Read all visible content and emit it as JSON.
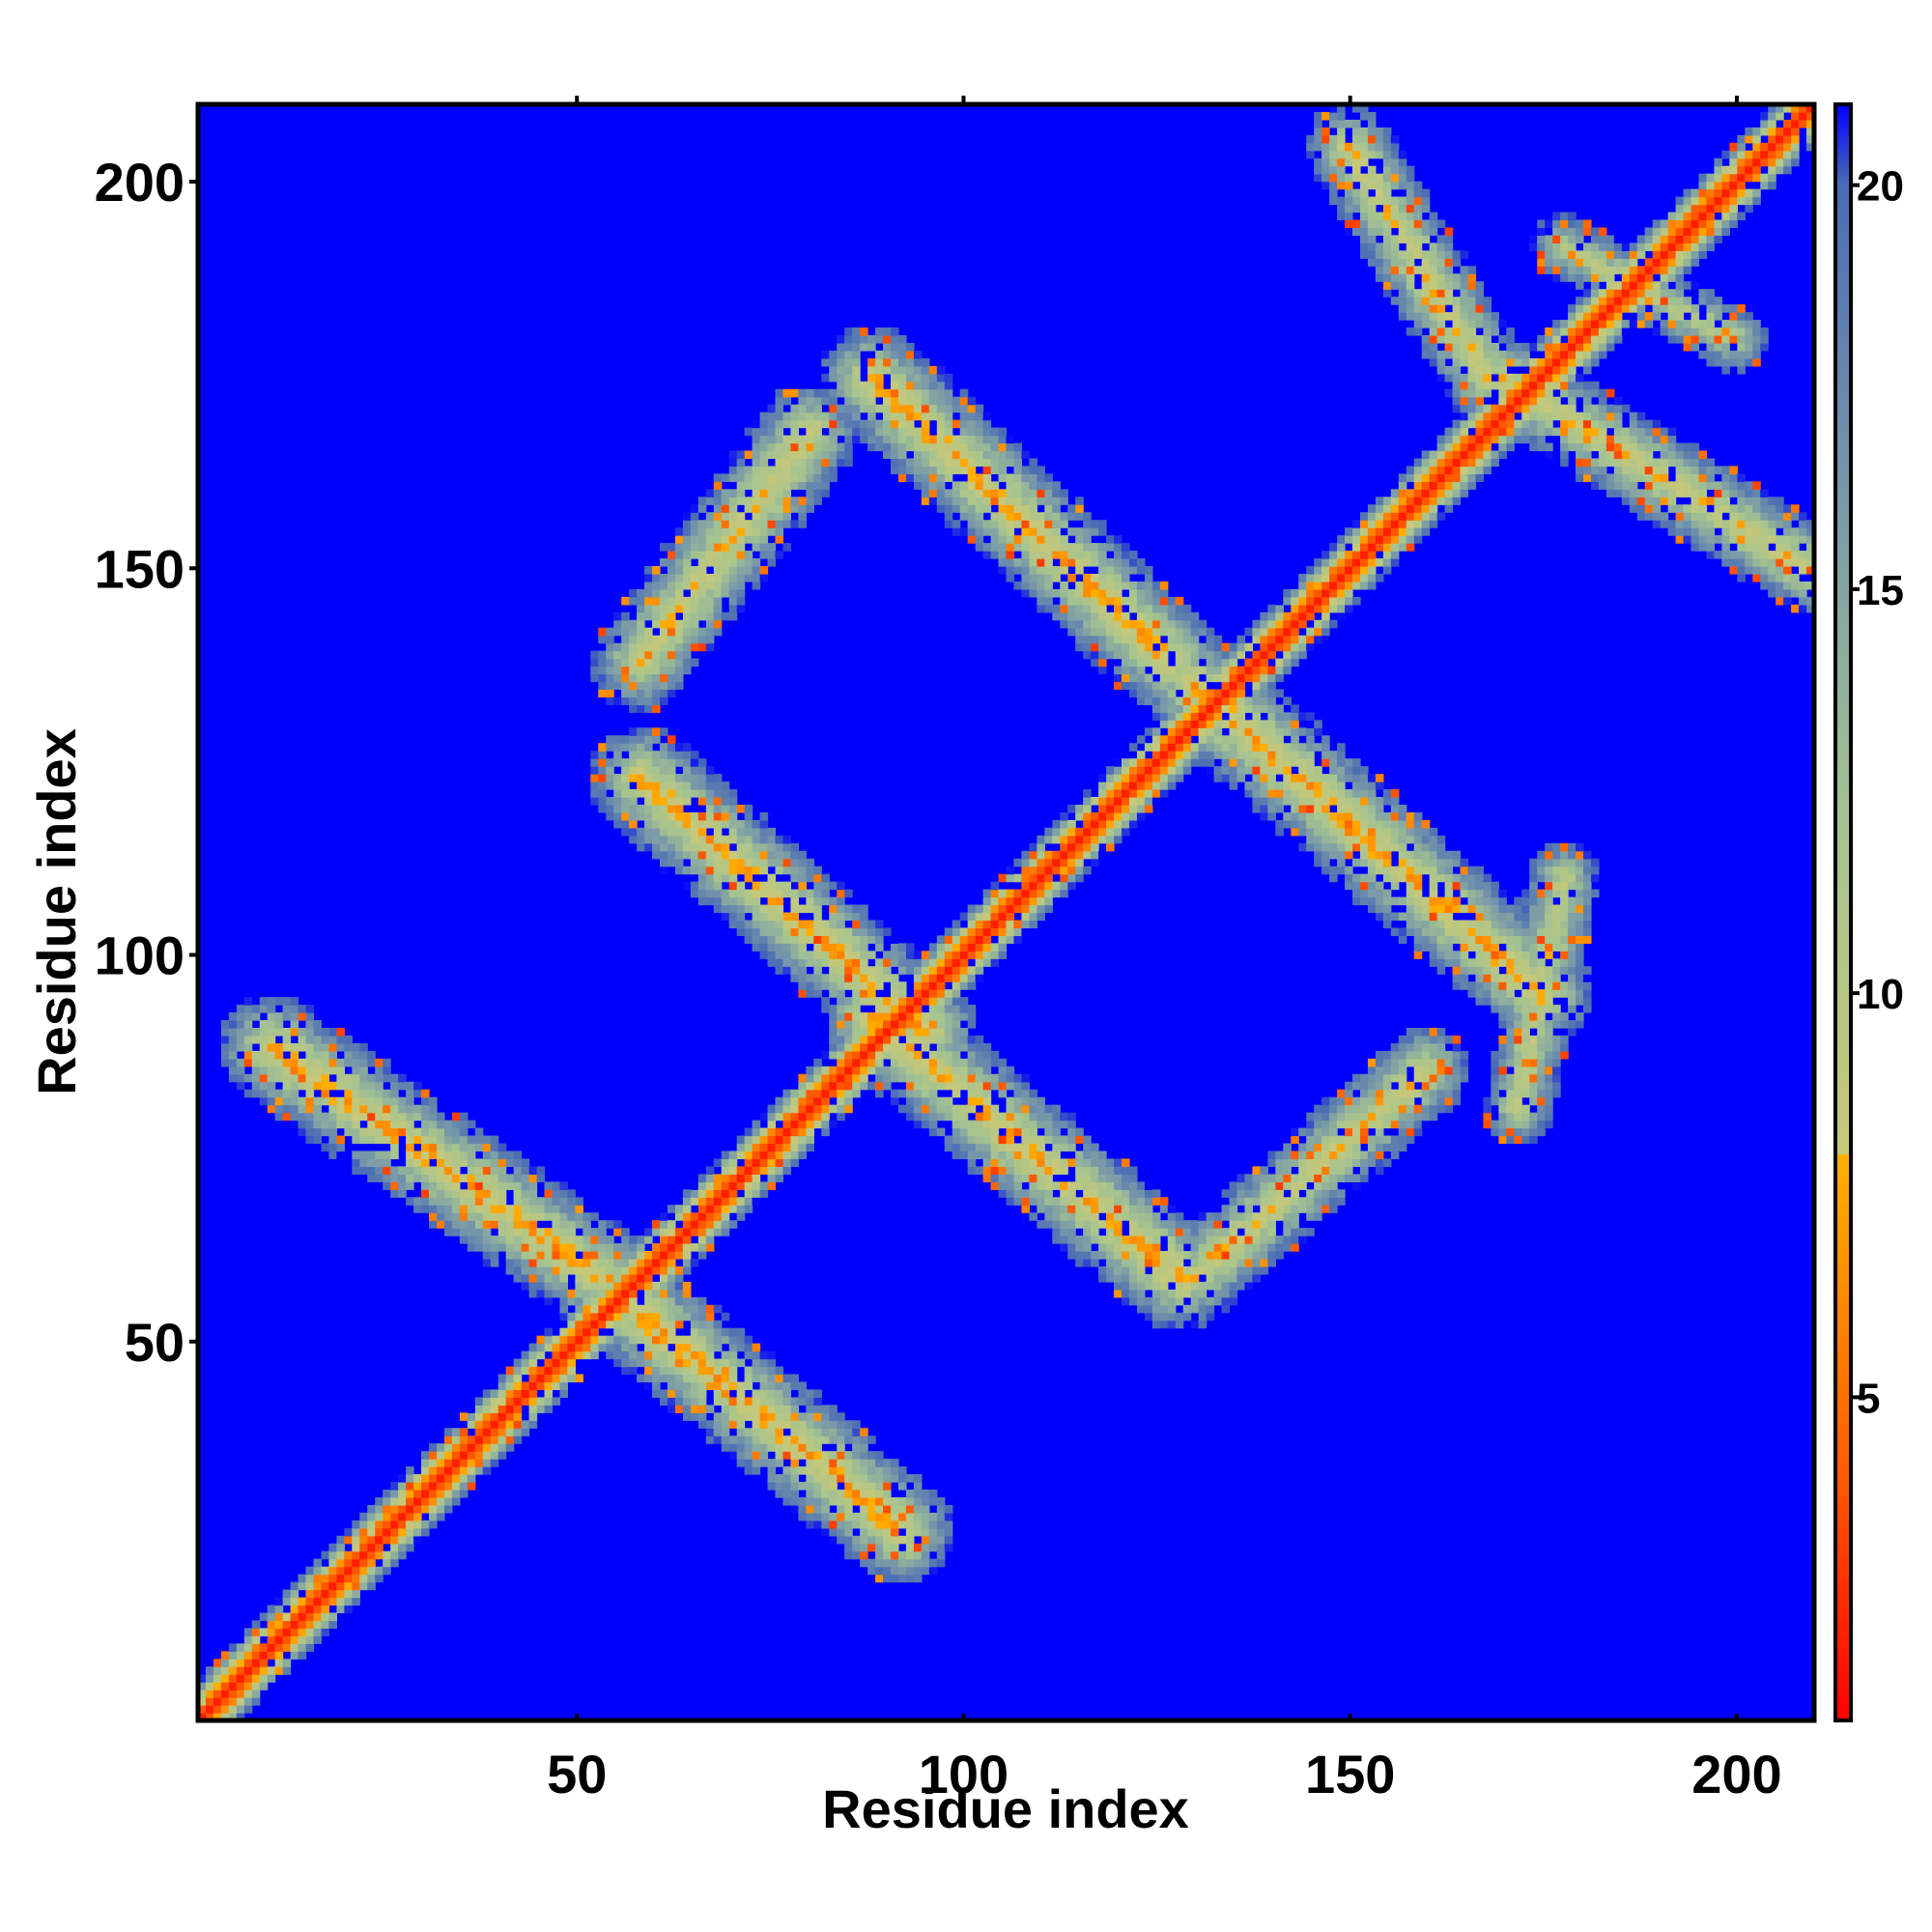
{
  "chart_data": {
    "type": "heatmap",
    "title": "",
    "xlabel": "Residue index",
    "ylabel": "Residue index",
    "xlim": [
      1,
      210
    ],
    "ylim": [
      1,
      210
    ],
    "x_ticks": [
      50,
      100,
      150,
      200
    ],
    "y_ticks": [
      50,
      100,
      150,
      200
    ],
    "x_tick_labels": [
      "50",
      "100",
      "150",
      "200"
    ],
    "y_tick_labels": [
      "50",
      "100",
      "150",
      "200"
    ],
    "grid": false,
    "legend": "colorbar-right",
    "colorbar": {
      "range": [
        1,
        21
      ],
      "ticks": [
        5,
        10,
        15,
        20
      ],
      "tick_labels": [
        "5",
        "10",
        "15",
        "20"
      ],
      "colors": [
        {
          "value": 1,
          "color": "#ff0000"
        },
        {
          "value": 4,
          "color": "#ff5a00"
        },
        {
          "value": 7,
          "color": "#ff9a00"
        },
        {
          "value": 8,
          "color": "#ffb000"
        },
        {
          "value": 8.01,
          "color": "#c8c878"
        },
        {
          "value": 12,
          "color": "#a6c490"
        },
        {
          "value": 16,
          "color": "#7a9aa8"
        },
        {
          "value": 20,
          "color": "#4a6cb4"
        },
        {
          "value": 21,
          "color": "#0000ff"
        }
      ],
      "background_color": "#0000ff"
    },
    "matrix_description": "Symmetric residue-residue distance map; contact bands listed below (start/end residues on the x and y axes, half-width in residues, distance value at band centre).",
    "bands": [
      {
        "x0": 1,
        "y0": 1,
        "x1": 210,
        "y1": 210,
        "width": 3.0,
        "value": 2
      },
      {
        "x0": 10,
        "y0": 88,
        "x1": 53,
        "y1": 58,
        "width": 4.5,
        "value": 11
      },
      {
        "x0": 56,
        "y0": 55,
        "x1": 92,
        "y1": 25,
        "width": 4.5,
        "value": 11
      },
      {
        "x0": 58,
        "y0": 123,
        "x1": 95,
        "y1": 90,
        "width": 4.5,
        "value": 11
      },
      {
        "x0": 58,
        "y0": 138,
        "x1": 80,
        "y1": 168,
        "width": 4.5,
        "value": 12
      },
      {
        "x0": 88,
        "y0": 92,
        "x1": 128,
        "y1": 58,
        "width": 4.5,
        "value": 11
      },
      {
        "x0": 88,
        "y0": 175,
        "x1": 127,
        "y1": 138,
        "width": 4.5,
        "value": 11
      },
      {
        "x0": 130,
        "y0": 58,
        "x1": 160,
        "y1": 85,
        "width": 4.0,
        "value": 12
      },
      {
        "x0": 130,
        "y0": 135,
        "x1": 175,
        "y1": 95,
        "width": 4.5,
        "value": 11
      },
      {
        "x0": 150,
        "y0": 205,
        "x1": 168,
        "y1": 175,
        "width": 4.0,
        "value": 12
      },
      {
        "x0": 170,
        "y0": 175,
        "x1": 210,
        "y1": 150,
        "width": 4.0,
        "value": 12
      },
      {
        "x0": 172,
        "y0": 80,
        "x1": 178,
        "y1": 110,
        "width": 3.5,
        "value": 13
      },
      {
        "x0": 178,
        "y0": 192,
        "x1": 200,
        "y1": 180,
        "width": 3.5,
        "value": 14
      }
    ]
  }
}
